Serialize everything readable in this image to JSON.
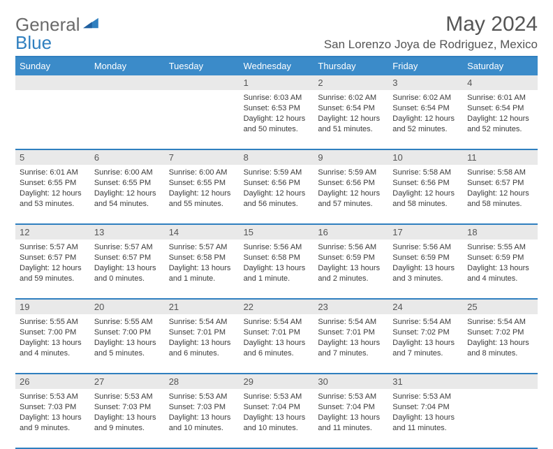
{
  "logo": {
    "word1": "General",
    "word2": "Blue"
  },
  "title": "May 2024",
  "location": "San Lorenzo Joya de Rodriguez, Mexico",
  "colors": {
    "header_bg": "#3b8bc9",
    "border": "#2f7fbf",
    "daynum_bg": "#e9e9e9",
    "text": "#3a3a3a",
    "muted": "#555555"
  },
  "dow": [
    "Sunday",
    "Monday",
    "Tuesday",
    "Wednesday",
    "Thursday",
    "Friday",
    "Saturday"
  ],
  "weeks": [
    {
      "nums": [
        "",
        "",
        "",
        "1",
        "2",
        "3",
        "4"
      ],
      "cells": [
        null,
        null,
        null,
        {
          "sunrise": "6:03 AM",
          "sunset": "6:53 PM",
          "daylight": "12 hours and 50 minutes."
        },
        {
          "sunrise": "6:02 AM",
          "sunset": "6:54 PM",
          "daylight": "12 hours and 51 minutes."
        },
        {
          "sunrise": "6:02 AM",
          "sunset": "6:54 PM",
          "daylight": "12 hours and 52 minutes."
        },
        {
          "sunrise": "6:01 AM",
          "sunset": "6:54 PM",
          "daylight": "12 hours and 52 minutes."
        }
      ]
    },
    {
      "nums": [
        "5",
        "6",
        "7",
        "8",
        "9",
        "10",
        "11"
      ],
      "cells": [
        {
          "sunrise": "6:01 AM",
          "sunset": "6:55 PM",
          "daylight": "12 hours and 53 minutes."
        },
        {
          "sunrise": "6:00 AM",
          "sunset": "6:55 PM",
          "daylight": "12 hours and 54 minutes."
        },
        {
          "sunrise": "6:00 AM",
          "sunset": "6:55 PM",
          "daylight": "12 hours and 55 minutes."
        },
        {
          "sunrise": "5:59 AM",
          "sunset": "6:56 PM",
          "daylight": "12 hours and 56 minutes."
        },
        {
          "sunrise": "5:59 AM",
          "sunset": "6:56 PM",
          "daylight": "12 hours and 57 minutes."
        },
        {
          "sunrise": "5:58 AM",
          "sunset": "6:56 PM",
          "daylight": "12 hours and 58 minutes."
        },
        {
          "sunrise": "5:58 AM",
          "sunset": "6:57 PM",
          "daylight": "12 hours and 58 minutes."
        }
      ]
    },
    {
      "nums": [
        "12",
        "13",
        "14",
        "15",
        "16",
        "17",
        "18"
      ],
      "cells": [
        {
          "sunrise": "5:57 AM",
          "sunset": "6:57 PM",
          "daylight": "12 hours and 59 minutes."
        },
        {
          "sunrise": "5:57 AM",
          "sunset": "6:57 PM",
          "daylight": "13 hours and 0 minutes."
        },
        {
          "sunrise": "5:57 AM",
          "sunset": "6:58 PM",
          "daylight": "13 hours and 1 minute."
        },
        {
          "sunrise": "5:56 AM",
          "sunset": "6:58 PM",
          "daylight": "13 hours and 1 minute."
        },
        {
          "sunrise": "5:56 AM",
          "sunset": "6:59 PM",
          "daylight": "13 hours and 2 minutes."
        },
        {
          "sunrise": "5:56 AM",
          "sunset": "6:59 PM",
          "daylight": "13 hours and 3 minutes."
        },
        {
          "sunrise": "5:55 AM",
          "sunset": "6:59 PM",
          "daylight": "13 hours and 4 minutes."
        }
      ]
    },
    {
      "nums": [
        "19",
        "20",
        "21",
        "22",
        "23",
        "24",
        "25"
      ],
      "cells": [
        {
          "sunrise": "5:55 AM",
          "sunset": "7:00 PM",
          "daylight": "13 hours and 4 minutes."
        },
        {
          "sunrise": "5:55 AM",
          "sunset": "7:00 PM",
          "daylight": "13 hours and 5 minutes."
        },
        {
          "sunrise": "5:54 AM",
          "sunset": "7:01 PM",
          "daylight": "13 hours and 6 minutes."
        },
        {
          "sunrise": "5:54 AM",
          "sunset": "7:01 PM",
          "daylight": "13 hours and 6 minutes."
        },
        {
          "sunrise": "5:54 AM",
          "sunset": "7:01 PM",
          "daylight": "13 hours and 7 minutes."
        },
        {
          "sunrise": "5:54 AM",
          "sunset": "7:02 PM",
          "daylight": "13 hours and 7 minutes."
        },
        {
          "sunrise": "5:54 AM",
          "sunset": "7:02 PM",
          "daylight": "13 hours and 8 minutes."
        }
      ]
    },
    {
      "nums": [
        "26",
        "27",
        "28",
        "29",
        "30",
        "31",
        ""
      ],
      "cells": [
        {
          "sunrise": "5:53 AM",
          "sunset": "7:03 PM",
          "daylight": "13 hours and 9 minutes."
        },
        {
          "sunrise": "5:53 AM",
          "sunset": "7:03 PM",
          "daylight": "13 hours and 9 minutes."
        },
        {
          "sunrise": "5:53 AM",
          "sunset": "7:03 PM",
          "daylight": "13 hours and 10 minutes."
        },
        {
          "sunrise": "5:53 AM",
          "sunset": "7:04 PM",
          "daylight": "13 hours and 10 minutes."
        },
        {
          "sunrise": "5:53 AM",
          "sunset": "7:04 PM",
          "daylight": "13 hours and 11 minutes."
        },
        {
          "sunrise": "5:53 AM",
          "sunset": "7:04 PM",
          "daylight": "13 hours and 11 minutes."
        },
        null
      ]
    }
  ],
  "labels": {
    "sunrise": "Sunrise: ",
    "sunset": "Sunset: ",
    "daylight": "Daylight: "
  }
}
